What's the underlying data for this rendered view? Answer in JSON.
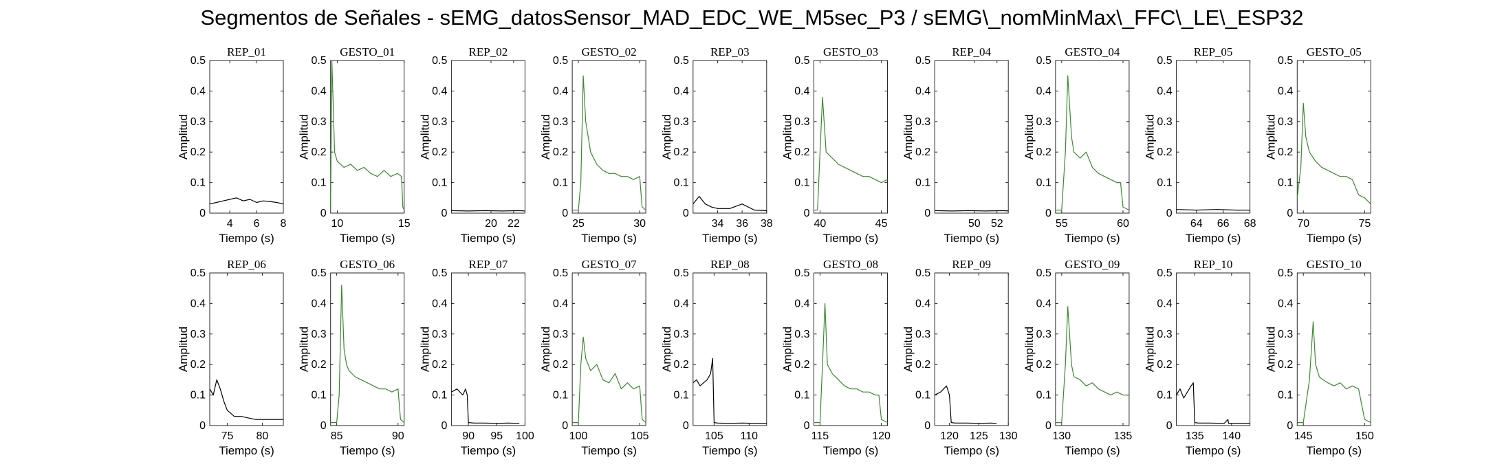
{
  "title": "Segmentos de Señales - sEMG_datosSensor_MAD_EDC_WE_M5sec_P3 / sEMG\\_nomMinMax\\_FFC\\_LE\\_ESP32",
  "colors": {
    "rep": "#000000",
    "gesto": "#3a8a2e"
  },
  "chart_data": [
    {
      "type": "line",
      "title": "REP_01",
      "kind": "rep",
      "xlabel": "Tiempo (s)",
      "ylabel": "Amplitud",
      "xlim": [
        2.5,
        8
      ],
      "ylim": [
        0,
        0.5
      ],
      "xticks": [
        4,
        6,
        8
      ],
      "yticks": [
        0,
        0.1,
        0.2,
        0.3,
        0.4,
        0.5
      ],
      "series": [
        {
          "x": [
            2.5,
            3,
            3.5,
            4,
            4.5,
            5,
            5.5,
            6,
            6.5,
            7,
            7.5,
            8
          ],
          "y": [
            0.03,
            0.035,
            0.04,
            0.045,
            0.05,
            0.04,
            0.045,
            0.035,
            0.04,
            0.038,
            0.035,
            0.03
          ]
        }
      ]
    },
    {
      "type": "line",
      "title": "GESTO_01",
      "kind": "gesto",
      "xlabel": "Tiempo (s)",
      "ylabel": "Amplitud",
      "xlim": [
        9.5,
        15
      ],
      "ylim": [
        0,
        0.5
      ],
      "xticks": [
        10,
        15
      ],
      "yticks": [
        0,
        0.1,
        0.2,
        0.3,
        0.4,
        0.5
      ],
      "series": [
        {
          "x": [
            9.5,
            9.6,
            9.7,
            9.8,
            10,
            10.5,
            11,
            11.5,
            12,
            12.5,
            13,
            13.5,
            14,
            14.5,
            14.8,
            14.9,
            15
          ],
          "y": [
            0.01,
            0.5,
            0.35,
            0.2,
            0.17,
            0.15,
            0.16,
            0.14,
            0.15,
            0.13,
            0.12,
            0.14,
            0.12,
            0.13,
            0.12,
            0.02,
            0.01
          ]
        }
      ]
    },
    {
      "type": "line",
      "title": "REP_02",
      "kind": "rep",
      "xlabel": "Tiempo (s)",
      "ylabel": "Amplitud",
      "xlim": [
        16.5,
        23
      ],
      "ylim": [
        0,
        0.5
      ],
      "xticks": [
        20,
        22
      ],
      "yticks": [
        0,
        0.1,
        0.2,
        0.3,
        0.4,
        0.5
      ],
      "series": [
        {
          "x": [
            16.5,
            18,
            19.5,
            21,
            22.5,
            23
          ],
          "y": [
            0.008,
            0.007,
            0.008,
            0.007,
            0.008,
            0.007
          ]
        }
      ]
    },
    {
      "type": "line",
      "title": "GESTO_02",
      "kind": "gesto",
      "xlabel": "Tiempo (s)",
      "ylabel": "Amplitud",
      "xlim": [
        24.5,
        30.5
      ],
      "ylim": [
        0,
        0.5
      ],
      "xticks": [
        25,
        30
      ],
      "yticks": [
        0,
        0.1,
        0.2,
        0.3,
        0.4,
        0.5
      ],
      "series": [
        {
          "x": [
            24.5,
            25,
            25.2,
            25.4,
            25.6,
            25.8,
            26,
            26.5,
            27,
            27.5,
            28,
            28.5,
            29,
            29.5,
            30,
            30.2,
            30.5
          ],
          "y": [
            0.01,
            0.01,
            0.1,
            0.45,
            0.3,
            0.25,
            0.2,
            0.16,
            0.14,
            0.13,
            0.13,
            0.12,
            0.12,
            0.11,
            0.12,
            0.02,
            0.01
          ]
        }
      ]
    },
    {
      "type": "line",
      "title": "REP_03",
      "kind": "rep",
      "xlabel": "Tiempo (s)",
      "ylabel": "Amplitud",
      "xlim": [
        32,
        38
      ],
      "ylim": [
        0,
        0.5
      ],
      "xticks": [
        34,
        36,
        38
      ],
      "yticks": [
        0,
        0.1,
        0.2,
        0.3,
        0.4,
        0.5
      ],
      "series": [
        {
          "x": [
            32,
            32.5,
            33,
            33.5,
            34,
            35,
            36,
            37,
            38
          ],
          "y": [
            0.03,
            0.055,
            0.03,
            0.02,
            0.015,
            0.015,
            0.03,
            0.01,
            0.008
          ]
        }
      ]
    },
    {
      "type": "line",
      "title": "GESTO_03",
      "kind": "gesto",
      "xlabel": "Tiempo (s)",
      "ylabel": "Amplitud",
      "xlim": [
        39.5,
        45.5
      ],
      "ylim": [
        0,
        0.5
      ],
      "xticks": [
        40,
        45
      ],
      "yticks": [
        0,
        0.1,
        0.2,
        0.3,
        0.4,
        0.5
      ],
      "series": [
        {
          "x": [
            39.5,
            39.8,
            40,
            40.2,
            40.5,
            41,
            41.5,
            42,
            42.5,
            43,
            43.5,
            44,
            44.5,
            45,
            45.5
          ],
          "y": [
            0.01,
            0.01,
            0.2,
            0.38,
            0.2,
            0.18,
            0.16,
            0.15,
            0.14,
            0.13,
            0.12,
            0.12,
            0.11,
            0.1,
            0.11
          ]
        }
      ]
    },
    {
      "type": "line",
      "title": "REP_04",
      "kind": "rep",
      "xlabel": "Tiempo (s)",
      "ylabel": "Amplitud",
      "xlim": [
        46.5,
        53
      ],
      "ylim": [
        0,
        0.5
      ],
      "xticks": [
        50,
        52
      ],
      "yticks": [
        0,
        0.1,
        0.2,
        0.3,
        0.4,
        0.5
      ],
      "series": [
        {
          "x": [
            46.5,
            48,
            49.5,
            51,
            52.5,
            53
          ],
          "y": [
            0.008,
            0.007,
            0.008,
            0.007,
            0.008,
            0.007
          ]
        }
      ]
    },
    {
      "type": "line",
      "title": "GESTO_04",
      "kind": "gesto",
      "xlabel": "Tiempo (s)",
      "ylabel": "Amplitud",
      "xlim": [
        54.5,
        60.5
      ],
      "ylim": [
        0,
        0.5
      ],
      "xticks": [
        55,
        60
      ],
      "yticks": [
        0,
        0.1,
        0.2,
        0.3,
        0.4,
        0.5
      ],
      "series": [
        {
          "x": [
            54.5,
            55,
            55.3,
            55.5,
            55.8,
            56,
            56.5,
            57,
            57.5,
            58,
            58.5,
            59,
            59.5,
            59.8,
            60,
            60.5
          ],
          "y": [
            0.01,
            0.01,
            0.2,
            0.45,
            0.25,
            0.2,
            0.18,
            0.2,
            0.15,
            0.13,
            0.12,
            0.11,
            0.1,
            0.1,
            0.02,
            0.01
          ]
        }
      ]
    },
    {
      "type": "line",
      "title": "REP_05",
      "kind": "rep",
      "xlabel": "Tiempo (s)",
      "ylabel": "Amplitud",
      "xlim": [
        62.5,
        68
      ],
      "ylim": [
        0,
        0.5
      ],
      "xticks": [
        64,
        66,
        68
      ],
      "yticks": [
        0,
        0.1,
        0.2,
        0.3,
        0.4,
        0.5
      ],
      "series": [
        {
          "x": [
            62.5,
            64,
            65.5,
            67,
            68
          ],
          "y": [
            0.012,
            0.01,
            0.012,
            0.01,
            0.01
          ]
        }
      ]
    },
    {
      "type": "line",
      "title": "GESTO_05",
      "kind": "gesto",
      "xlabel": "Tiempo (s)",
      "ylabel": "Amplitud",
      "xlim": [
        69.5,
        75.5
      ],
      "ylim": [
        0,
        0.5
      ],
      "xticks": [
        70,
        75
      ],
      "yticks": [
        0,
        0.1,
        0.2,
        0.3,
        0.4,
        0.5
      ],
      "series": [
        {
          "x": [
            69.5,
            69.8,
            70,
            70.2,
            70.5,
            71,
            71.5,
            72,
            72.5,
            73,
            73.5,
            74,
            74.5,
            75,
            75.5
          ],
          "y": [
            0.05,
            0.15,
            0.36,
            0.25,
            0.2,
            0.17,
            0.15,
            0.14,
            0.13,
            0.12,
            0.12,
            0.11,
            0.06,
            0.05,
            0.03
          ]
        }
      ]
    },
    {
      "type": "line",
      "title": "REP_06",
      "kind": "rep",
      "xlabel": "Tiempo (s)",
      "ylabel": "Amplitud",
      "xlim": [
        72.5,
        83
      ],
      "ylim": [
        0,
        0.5
      ],
      "xticks": [
        75,
        80
      ],
      "yticks": [
        0,
        0.1,
        0.2,
        0.3,
        0.4,
        0.5
      ],
      "series": [
        {
          "x": [
            72.5,
            73,
            73.5,
            74,
            74.5,
            75,
            75.5,
            76,
            77,
            78,
            79,
            80,
            81,
            82,
            83
          ],
          "y": [
            0.12,
            0.1,
            0.15,
            0.12,
            0.08,
            0.05,
            0.04,
            0.03,
            0.03,
            0.025,
            0.02,
            0.02,
            0.02,
            0.02,
            0.02
          ]
        }
      ]
    },
    {
      "type": "line",
      "title": "GESTO_06",
      "kind": "gesto",
      "xlabel": "Tiempo (s)",
      "ylabel": "Amplitud",
      "xlim": [
        84.5,
        90.5
      ],
      "ylim": [
        0,
        0.5
      ],
      "xticks": [
        85,
        90
      ],
      "yticks": [
        0,
        0.1,
        0.2,
        0.3,
        0.4,
        0.5
      ],
      "series": [
        {
          "x": [
            84.5,
            85,
            85.2,
            85.4,
            85.6,
            85.8,
            86,
            86.5,
            87,
            87.5,
            88,
            88.5,
            89,
            89.5,
            90,
            90.2,
            90.5
          ],
          "y": [
            0.01,
            0.01,
            0.1,
            0.46,
            0.25,
            0.2,
            0.18,
            0.16,
            0.15,
            0.14,
            0.13,
            0.12,
            0.12,
            0.11,
            0.12,
            0.02,
            0.01
          ]
        }
      ]
    },
    {
      "type": "line",
      "title": "REP_07",
      "kind": "rep",
      "xlabel": "Tiempo (s)",
      "ylabel": "Amplitud",
      "xlim": [
        87,
        100
      ],
      "ylim": [
        0,
        0.5
      ],
      "xticks": [
        90,
        95,
        100
      ],
      "yticks": [
        0,
        0.1,
        0.2,
        0.3,
        0.4,
        0.5
      ],
      "series": [
        {
          "x": [
            87,
            88,
            89,
            89.5,
            89.8,
            90,
            91,
            93,
            95,
            97,
            99
          ],
          "y": [
            0.11,
            0.12,
            0.1,
            0.12,
            0.1,
            0.01,
            0.008,
            0.008,
            0.007,
            0.008,
            0.007
          ]
        }
      ]
    },
    {
      "type": "line",
      "title": "GESTO_07",
      "kind": "gesto",
      "xlabel": "Tiempo (s)",
      "ylabel": "Amplitud",
      "xlim": [
        99.5,
        105.5
      ],
      "ylim": [
        0,
        0.5
      ],
      "xticks": [
        100,
        105
      ],
      "yticks": [
        0,
        0.1,
        0.2,
        0.3,
        0.4,
        0.5
      ],
      "series": [
        {
          "x": [
            99.5,
            100,
            100.2,
            100.4,
            100.6,
            101,
            101.5,
            102,
            102.5,
            103,
            103.5,
            104,
            104.5,
            105,
            105.2,
            105.5
          ],
          "y": [
            0.01,
            0.01,
            0.2,
            0.29,
            0.22,
            0.18,
            0.2,
            0.15,
            0.14,
            0.17,
            0.12,
            0.14,
            0.12,
            0.13,
            0.02,
            0.01
          ]
        }
      ]
    },
    {
      "type": "line",
      "title": "REP_08",
      "kind": "rep",
      "xlabel": "Tiempo (s)",
      "ylabel": "Amplitud",
      "xlim": [
        102,
        112.5
      ],
      "ylim": [
        0,
        0.5
      ],
      "xticks": [
        105,
        110
      ],
      "yticks": [
        0,
        0.1,
        0.2,
        0.3,
        0.4,
        0.5
      ],
      "series": [
        {
          "x": [
            102,
            102.5,
            103,
            103.5,
            104,
            104.5,
            104.8,
            105,
            105.5,
            107,
            109,
            111,
            112.5
          ],
          "y": [
            0.14,
            0.15,
            0.13,
            0.14,
            0.15,
            0.17,
            0.22,
            0.01,
            0.008,
            0.007,
            0.008,
            0.007,
            0.007
          ]
        }
      ]
    },
    {
      "type": "line",
      "title": "GESTO_08",
      "kind": "gesto",
      "xlabel": "Tiempo (s)",
      "ylabel": "Amplitud",
      "xlim": [
        114.5,
        120.5
      ],
      "ylim": [
        0,
        0.5
      ],
      "xticks": [
        115,
        120
      ],
      "yticks": [
        0,
        0.1,
        0.2,
        0.3,
        0.4,
        0.5
      ],
      "series": [
        {
          "x": [
            114.5,
            115,
            115.2,
            115.4,
            115.6,
            116,
            116.5,
            117,
            117.5,
            118,
            118.5,
            119,
            119.5,
            119.8,
            120,
            120.5
          ],
          "y": [
            0.01,
            0.01,
            0.2,
            0.4,
            0.2,
            0.17,
            0.15,
            0.13,
            0.12,
            0.12,
            0.11,
            0.11,
            0.1,
            0.1,
            0.02,
            0.01
          ]
        }
      ]
    },
    {
      "type": "line",
      "title": "REP_09",
      "kind": "rep",
      "xlabel": "Tiempo (s)",
      "ylabel": "Amplitud",
      "xlim": [
        117.5,
        130
      ],
      "ylim": [
        0,
        0.5
      ],
      "xticks": [
        120,
        125,
        130
      ],
      "yticks": [
        0,
        0.1,
        0.2,
        0.3,
        0.4,
        0.5
      ],
      "series": [
        {
          "x": [
            117.5,
            118.5,
            119.5,
            120,
            120.3,
            121,
            123,
            125,
            127,
            128
          ],
          "y": [
            0.1,
            0.11,
            0.13,
            0.1,
            0.01,
            0.008,
            0.008,
            0.007,
            0.008,
            0.007
          ]
        }
      ]
    },
    {
      "type": "line",
      "title": "GESTO_09",
      "kind": "gesto",
      "xlabel": "Tiempo (s)",
      "ylabel": "Amplitud",
      "xlim": [
        129.5,
        135.5
      ],
      "ylim": [
        0,
        0.5
      ],
      "xticks": [
        130,
        135
      ],
      "yticks": [
        0,
        0.1,
        0.2,
        0.3,
        0.4,
        0.5
      ],
      "series": [
        {
          "x": [
            129.5,
            130,
            130.3,
            130.5,
            130.8,
            131,
            131.5,
            132,
            132.5,
            133,
            133.5,
            134,
            134.5,
            135,
            135.5
          ],
          "y": [
            0.01,
            0.01,
            0.2,
            0.39,
            0.2,
            0.16,
            0.15,
            0.13,
            0.14,
            0.12,
            0.11,
            0.1,
            0.11,
            0.1,
            0.1
          ]
        }
      ]
    },
    {
      "type": "line",
      "title": "REP_10",
      "kind": "rep",
      "xlabel": "Tiempo (s)",
      "ylabel": "Amplitud",
      "xlim": [
        132.5,
        142.5
      ],
      "ylim": [
        0,
        0.5
      ],
      "xticks": [
        135,
        140
      ],
      "yticks": [
        0,
        0.1,
        0.2,
        0.3,
        0.4,
        0.5
      ],
      "series": [
        {
          "x": [
            132.5,
            133,
            133.5,
            134,
            134.5,
            134.8,
            135,
            135.5,
            137,
            139,
            139.5,
            139.6,
            140,
            142.5
          ],
          "y": [
            0.1,
            0.12,
            0.09,
            0.11,
            0.13,
            0.14,
            0.01,
            0.008,
            0.008,
            0.007,
            0.02,
            0.007,
            0.007,
            0.007
          ]
        }
      ]
    },
    {
      "type": "line",
      "title": "GESTO_10",
      "kind": "gesto",
      "xlabel": "Tiempo (s)",
      "ylabel": "Amplitud",
      "xlim": [
        144.5,
        150.5
      ],
      "ylim": [
        0,
        0.5
      ],
      "xticks": [
        145,
        150
      ],
      "yticks": [
        0,
        0.1,
        0.2,
        0.3,
        0.4,
        0.5
      ],
      "series": [
        {
          "x": [
            144.5,
            145,
            145.5,
            145.8,
            146,
            146.3,
            146.6,
            147,
            147.5,
            148,
            148.5,
            149,
            149.5,
            150,
            150.5
          ],
          "y": [
            0.01,
            0.01,
            0.15,
            0.34,
            0.2,
            0.16,
            0.15,
            0.14,
            0.13,
            0.14,
            0.12,
            0.13,
            0.12,
            0.02,
            0.01
          ]
        }
      ]
    }
  ]
}
